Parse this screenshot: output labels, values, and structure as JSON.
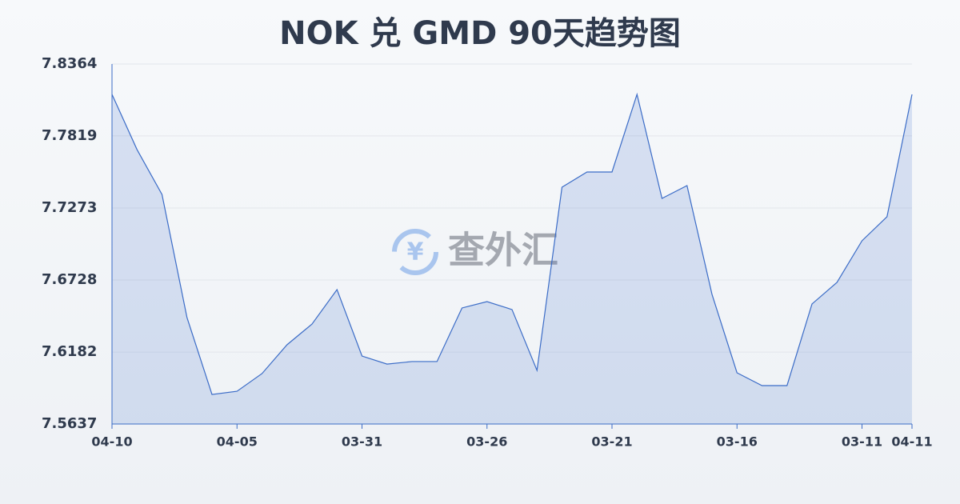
{
  "chart_data": {
    "type": "line",
    "title": "NOK 兑 GMD 90天趋势图",
    "watermark": "查外汇",
    "categories": [
      "04-10",
      null,
      null,
      null,
      null,
      "04-05",
      null,
      null,
      null,
      null,
      "03-31",
      null,
      null,
      null,
      null,
      "03-26",
      null,
      null,
      null,
      null,
      "03-21",
      null,
      null,
      null,
      null,
      "03-16",
      null,
      null,
      null,
      null,
      "03-11",
      null,
      "04-11"
    ],
    "series": [
      {
        "color": "#3b6cc7",
        "values": [
          7.8134,
          7.7716,
          7.7376,
          7.6443,
          7.5861,
          7.5885,
          7.6019,
          7.6237,
          7.6394,
          7.6655,
          7.6152,
          7.6091,
          7.611,
          7.611,
          7.6516,
          7.6564,
          7.6504,
          7.6043,
          7.7431,
          7.7546,
          7.7546,
          7.8134,
          7.7346,
          7.7443,
          7.6619,
          7.6025,
          7.5928,
          7.5928,
          7.6546,
          7.671,
          7.7025,
          7.7207,
          7.8134
        ]
      }
    ],
    "ylim": [
      7.5637,
      7.8364
    ],
    "yticks": [
      7.5637,
      7.6182,
      7.6728,
      7.7273,
      7.7819,
      7.8364
    ],
    "grid": true
  }
}
